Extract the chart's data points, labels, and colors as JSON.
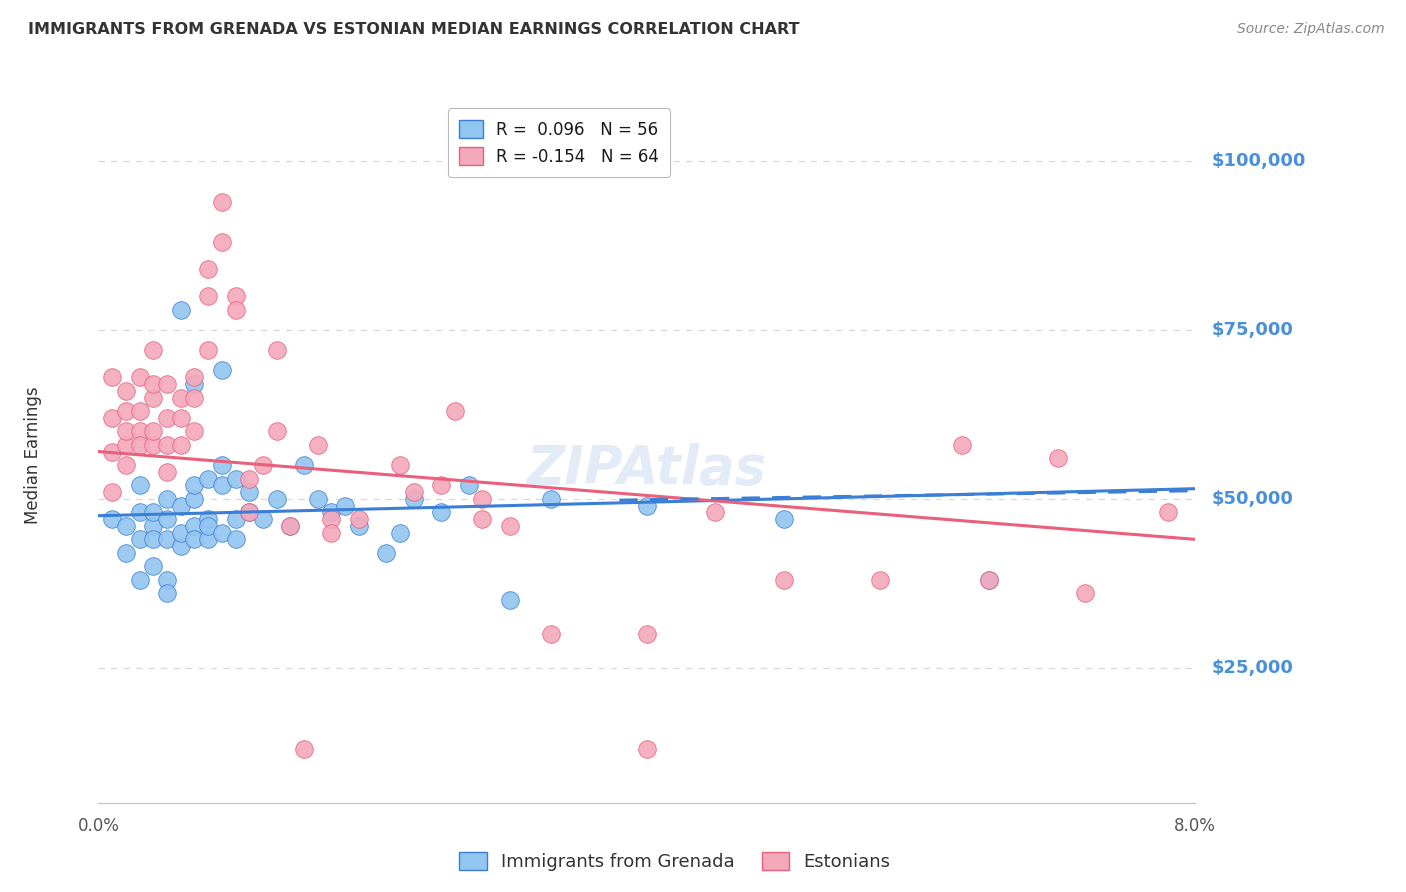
{
  "title": "IMMIGRANTS FROM GRENADA VS ESTONIAN MEDIAN EARNINGS CORRELATION CHART",
  "source": "Source: ZipAtlas.com",
  "ylabel": "Median Earnings",
  "ytick_labels": [
    "$25,000",
    "$50,000",
    "$75,000",
    "$100,000"
  ],
  "ytick_values": [
    25000,
    50000,
    75000,
    100000
  ],
  "legend_entry1": "R =  0.096   N = 56",
  "legend_entry2": "R = -0.154   N = 64",
  "legend_label1": "Immigrants from Grenada",
  "legend_label2": "Estonians",
  "blue_color": "#92c5f0",
  "pink_color": "#f4a8bc",
  "blue_line_color": "#3a7fd5",
  "pink_line_color": "#e8607a",
  "axis_color": "#c8c8c8",
  "grid_color": "#d8d8d8",
  "title_color": "#333333",
  "source_color": "#888888",
  "right_label_color": "#4a8fd9",
  "xmin": 0.0,
  "xmax": 0.08,
  "ymin": 5000,
  "ymax": 108000,
  "blue_scatter": [
    [
      0.001,
      47000
    ],
    [
      0.002,
      46000
    ],
    [
      0.002,
      42000
    ],
    [
      0.003,
      48000
    ],
    [
      0.003,
      44000
    ],
    [
      0.003,
      52000
    ],
    [
      0.003,
      38000
    ],
    [
      0.004,
      46000
    ],
    [
      0.004,
      44000
    ],
    [
      0.004,
      40000
    ],
    [
      0.004,
      48000
    ],
    [
      0.005,
      50000
    ],
    [
      0.005,
      44000
    ],
    [
      0.005,
      38000
    ],
    [
      0.005,
      36000
    ],
    [
      0.005,
      47000
    ],
    [
      0.006,
      43000
    ],
    [
      0.006,
      45000
    ],
    [
      0.006,
      49000
    ],
    [
      0.006,
      78000
    ],
    [
      0.007,
      46000
    ],
    [
      0.007,
      44000
    ],
    [
      0.007,
      50000
    ],
    [
      0.007,
      67000
    ],
    [
      0.007,
      52000
    ],
    [
      0.008,
      47000
    ],
    [
      0.008,
      44000
    ],
    [
      0.008,
      53000
    ],
    [
      0.008,
      46000
    ],
    [
      0.009,
      52000
    ],
    [
      0.009,
      55000
    ],
    [
      0.009,
      45000
    ],
    [
      0.009,
      69000
    ],
    [
      0.01,
      47000
    ],
    [
      0.01,
      44000
    ],
    [
      0.01,
      53000
    ],
    [
      0.011,
      51000
    ],
    [
      0.011,
      48000
    ],
    [
      0.012,
      47000
    ],
    [
      0.013,
      50000
    ],
    [
      0.014,
      46000
    ],
    [
      0.015,
      55000
    ],
    [
      0.016,
      50000
    ],
    [
      0.017,
      48000
    ],
    [
      0.018,
      49000
    ],
    [
      0.019,
      46000
    ],
    [
      0.021,
      42000
    ],
    [
      0.022,
      45000
    ],
    [
      0.023,
      50000
    ],
    [
      0.025,
      48000
    ],
    [
      0.027,
      52000
    ],
    [
      0.03,
      35000
    ],
    [
      0.033,
      50000
    ],
    [
      0.04,
      49000
    ],
    [
      0.05,
      47000
    ],
    [
      0.065,
      38000
    ]
  ],
  "pink_scatter": [
    [
      0.001,
      62000
    ],
    [
      0.001,
      68000
    ],
    [
      0.001,
      57000
    ],
    [
      0.001,
      51000
    ],
    [
      0.002,
      63000
    ],
    [
      0.002,
      66000
    ],
    [
      0.002,
      55000
    ],
    [
      0.002,
      58000
    ],
    [
      0.002,
      60000
    ],
    [
      0.003,
      68000
    ],
    [
      0.003,
      60000
    ],
    [
      0.003,
      63000
    ],
    [
      0.003,
      58000
    ],
    [
      0.004,
      65000
    ],
    [
      0.004,
      58000
    ],
    [
      0.004,
      60000
    ],
    [
      0.004,
      67000
    ],
    [
      0.004,
      72000
    ],
    [
      0.005,
      67000
    ],
    [
      0.005,
      58000
    ],
    [
      0.005,
      62000
    ],
    [
      0.005,
      54000
    ],
    [
      0.006,
      65000
    ],
    [
      0.006,
      62000
    ],
    [
      0.006,
      58000
    ],
    [
      0.007,
      68000
    ],
    [
      0.007,
      65000
    ],
    [
      0.007,
      60000
    ],
    [
      0.008,
      80000
    ],
    [
      0.008,
      84000
    ],
    [
      0.008,
      72000
    ],
    [
      0.009,
      88000
    ],
    [
      0.009,
      94000
    ],
    [
      0.01,
      80000
    ],
    [
      0.01,
      78000
    ],
    [
      0.011,
      53000
    ],
    [
      0.011,
      48000
    ],
    [
      0.012,
      55000
    ],
    [
      0.013,
      72000
    ],
    [
      0.013,
      60000
    ],
    [
      0.014,
      46000
    ],
    [
      0.015,
      13000
    ],
    [
      0.016,
      58000
    ],
    [
      0.017,
      47000
    ],
    [
      0.017,
      45000
    ],
    [
      0.019,
      47000
    ],
    [
      0.022,
      55000
    ],
    [
      0.023,
      51000
    ],
    [
      0.025,
      52000
    ],
    [
      0.026,
      63000
    ],
    [
      0.028,
      47000
    ],
    [
      0.028,
      50000
    ],
    [
      0.03,
      46000
    ],
    [
      0.033,
      30000
    ],
    [
      0.04,
      30000
    ],
    [
      0.04,
      13000
    ],
    [
      0.045,
      48000
    ],
    [
      0.05,
      38000
    ],
    [
      0.057,
      38000
    ],
    [
      0.063,
      58000
    ],
    [
      0.065,
      38000
    ],
    [
      0.07,
      56000
    ],
    [
      0.072,
      36000
    ],
    [
      0.078,
      48000
    ]
  ],
  "blue_trendline": [
    [
      0.0,
      47500
    ],
    [
      0.08,
      51500
    ]
  ],
  "pink_trendline": [
    [
      0.0,
      57000
    ],
    [
      0.08,
      44000
    ]
  ],
  "dashed_trendline": [
    [
      0.038,
      49800
    ],
    [
      0.08,
      51200
    ]
  ]
}
